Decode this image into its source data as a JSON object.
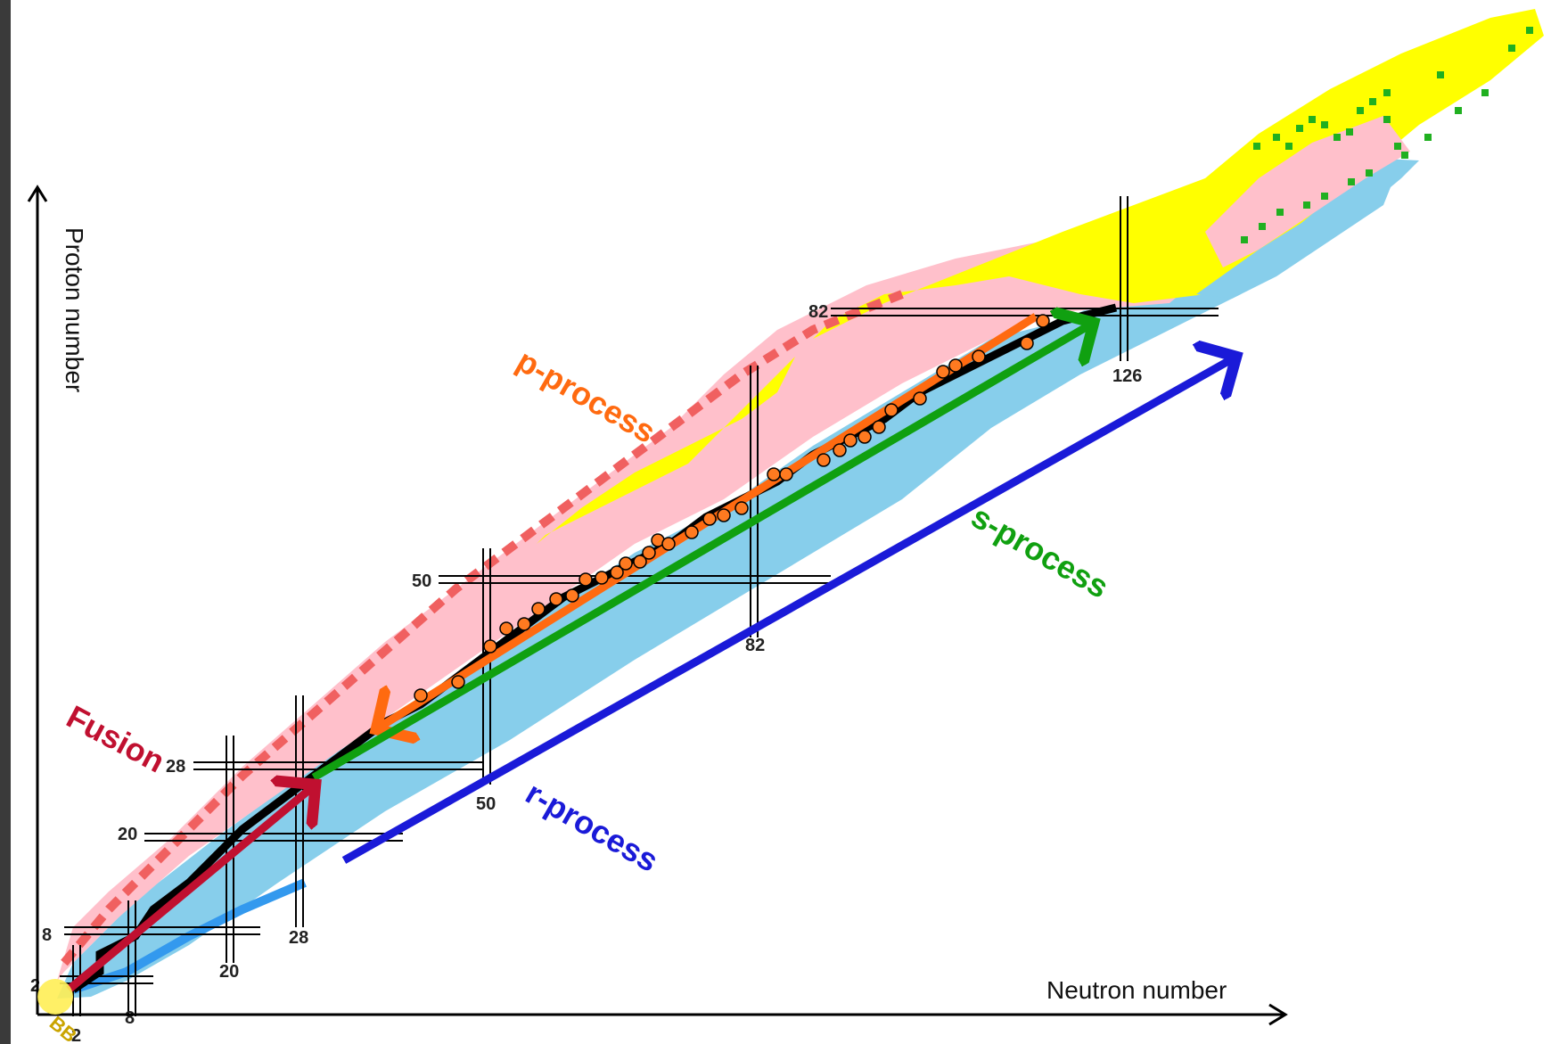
{
  "axes": {
    "y_label": "Proton number",
    "x_label": "Neutron number"
  },
  "magic_numbers": {
    "proton": [
      "2",
      "8",
      "20",
      "28",
      "50",
      "82"
    ],
    "neutron": [
      "2",
      "8",
      "20",
      "28",
      "50",
      "82",
      "126"
    ]
  },
  "origin_label": "BB",
  "processes": [
    {
      "name": "Fusion",
      "color": "#c01030"
    },
    {
      "name": "p-process",
      "color": "#ff6a10"
    },
    {
      "name": "s-process",
      "color": "#10a010"
    },
    {
      "name": "r-process",
      "color": "#1a1ad8"
    }
  ],
  "colors": {
    "neutron_rich": "#87ceeb",
    "proton_rich": "#ffc0cb",
    "alpha_decay": "#ffff00",
    "stable": "#000000",
    "proton_emitter": "#f06060",
    "fission": "#20b020",
    "deep_neutron_rich": "#3399ee",
    "p_nuclei_dot": "#ff7a20"
  },
  "icons": {
    "origin": "yellow-circle-icon",
    "p_nuclei": "orange-dot-icon"
  }
}
